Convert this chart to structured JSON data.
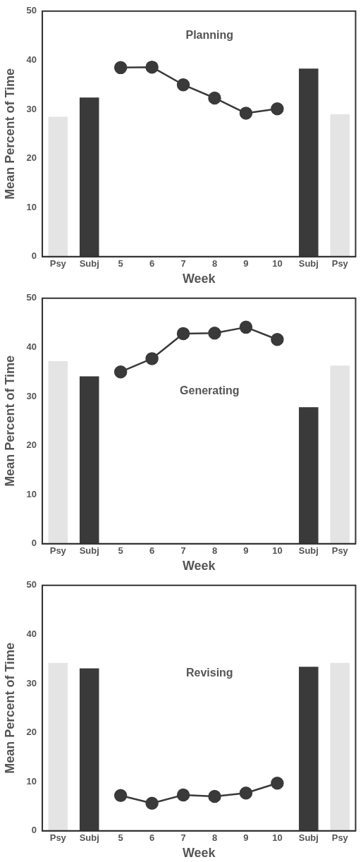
{
  "chart_data": [
    {
      "type": "bar",
      "title": "Planning",
      "xlabel": "Week",
      "ylabel": "Mean Percent of Time",
      "categories": [
        "Psy",
        "Subj",
        "5",
        "6",
        "7",
        "8",
        "9",
        "10",
        "Subj",
        "Psy"
      ],
      "ylim": [
        0,
        50
      ],
      "yticks": [
        0,
        10,
        20,
        30,
        40,
        50
      ],
      "grid": false,
      "legend": false,
      "marker": "circle",
      "series": [
        {
          "colors": [
            "#e4e4e4",
            "#3a3a3a",
            null,
            null,
            null,
            null,
            null,
            null,
            "#3a3a3a",
            "#e4e4e4"
          ],
          "values": [
            28.5,
            32.4,
            null,
            null,
            null,
            null,
            null,
            null,
            38.3,
            29.0
          ]
        },
        {
          "type": "line",
          "color": "#3a3a3a",
          "values": [
            null,
            null,
            38.5,
            38.6,
            35.0,
            32.3,
            29.2,
            30.1,
            null,
            null
          ]
        }
      ]
    },
    {
      "type": "bar",
      "title": "Generating",
      "xlabel": "Week",
      "ylabel": "Mean Percent of Time",
      "categories": [
        "Psy",
        "Subj",
        "5",
        "6",
        "7",
        "8",
        "9",
        "10",
        "Subj",
        "Psy"
      ],
      "ylim": [
        0,
        50
      ],
      "yticks": [
        0,
        10,
        20,
        30,
        40,
        50
      ],
      "grid": false,
      "legend": false,
      "marker": "circle",
      "series": [
        {
          "colors": [
            "#e4e4e4",
            "#3a3a3a",
            null,
            null,
            null,
            null,
            null,
            null,
            "#3a3a3a",
            "#e4e4e4"
          ],
          "values": [
            37.2,
            34.1,
            null,
            null,
            null,
            null,
            null,
            null,
            27.8,
            36.3
          ]
        },
        {
          "type": "line",
          "color": "#3a3a3a",
          "values": [
            null,
            null,
            35.0,
            37.7,
            42.8,
            42.9,
            44.1,
            41.6,
            null,
            null
          ]
        }
      ]
    },
    {
      "type": "bar",
      "title": "Revising",
      "xlabel": "Week",
      "ylabel": "Mean Percent of Time",
      "categories": [
        "Psy",
        "Subj",
        "5",
        "6",
        "7",
        "8",
        "9",
        "10",
        "Subj",
        "Psy"
      ],
      "ylim": [
        0,
        50
      ],
      "yticks": [
        0,
        10,
        20,
        30,
        40,
        50
      ],
      "grid": false,
      "legend": false,
      "marker": "circle",
      "series": [
        {
          "colors": [
            "#e4e4e4",
            "#3a3a3a",
            null,
            null,
            null,
            null,
            null,
            null,
            "#3a3a3a",
            "#e4e4e4"
          ],
          "values": [
            34.2,
            33.1,
            null,
            null,
            null,
            null,
            null,
            null,
            33.4,
            34.2
          ]
        },
        {
          "type": "line",
          "color": "#3a3a3a",
          "values": [
            null,
            null,
            7.2,
            5.6,
            7.3,
            7.0,
            7.7,
            9.7,
            null,
            null
          ]
        }
      ]
    }
  ]
}
